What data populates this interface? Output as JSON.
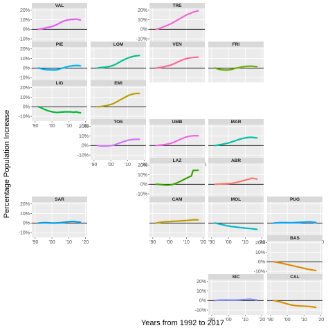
{
  "chart_data": {
    "type": "line",
    "title": "",
    "xlabel": "Years from 1992 to 2017",
    "ylabel": "Percentage Population Increase",
    "xlim": [
      1988,
      2021
    ],
    "ylim": [
      -15,
      22
    ],
    "x_ticks": [
      1990,
      2000,
      2010,
      2020
    ],
    "x_tick_labels": [
      "'90",
      "'00",
      "'10",
      "'20"
    ],
    "y_ticks": [
      -10,
      0,
      10,
      20
    ],
    "y_tick_labels": [
      "-10%",
      "0%",
      "10%",
      "20%"
    ],
    "reference_line_y": 0,
    "grid": true,
    "legend": "none",
    "panel_background": "#ebebeb",
    "strip_background": "#d9d9d9",
    "x": [
      1992,
      1993,
      1994,
      1995,
      1996,
      1997,
      1998,
      1999,
      2000,
      2001,
      2002,
      2003,
      2004,
      2005,
      2006,
      2007,
      2008,
      2009,
      2010,
      2011,
      2012,
      2013,
      2014,
      2015,
      2016,
      2017
    ],
    "series": [
      {
        "name": "VAL",
        "color": "#e55af0",
        "values": [
          0,
          0.3,
          0.6,
          1.0,
          1.4,
          1.8,
          2.1,
          2.5,
          3.0,
          3.5,
          4.2,
          5.0,
          6.0,
          7.0,
          7.8,
          8.6,
          9.2,
          9.6,
          10.0,
          10.2,
          10.4,
          10.3,
          10.8,
          10.5,
          10.0,
          9.8
        ]
      },
      {
        "name": "TRE",
        "color": "#ee67d1",
        "values": [
          0,
          0.4,
          1.0,
          1.6,
          2.3,
          3.0,
          3.7,
          4.4,
          5.2,
          6.0,
          7.0,
          8.0,
          9.0,
          10.0,
          11.0,
          12.0,
          13.0,
          14.0,
          15.0,
          15.8,
          16.5,
          17.2,
          18.0,
          18.5,
          19.0,
          19.3
        ]
      },
      {
        "name": "PIE",
        "color": "#00b3f5",
        "values": [
          0,
          -0.5,
          -0.9,
          -1.2,
          -1.5,
          -1.7,
          -1.8,
          -1.9,
          -2.0,
          -2.0,
          -2.0,
          -1.8,
          -1.3,
          -0.8,
          -0.3,
          0.2,
          0.8,
          1.3,
          1.8,
          2.0,
          2.3,
          2.5,
          2.6,
          2.7,
          2.5,
          2.2
        ]
      },
      {
        "name": "LOM",
        "color": "#00bf8a",
        "values": [
          0,
          0.2,
          0.4,
          0.6,
          0.8,
          1.0,
          1.3,
          1.6,
          2.0,
          2.5,
          3.2,
          4.0,
          5.0,
          6.0,
          7.0,
          8.0,
          8.8,
          9.6,
          10.3,
          11.0,
          11.5,
          12.0,
          12.5,
          12.8,
          13.0,
          13.1
        ]
      },
      {
        "name": "VEN",
        "color": "#f8699c",
        "values": [
          0,
          0.3,
          0.5,
          0.8,
          1.1,
          1.5,
          1.9,
          2.3,
          2.8,
          3.3,
          4.0,
          4.8,
          5.6,
          6.4,
          7.2,
          8.0,
          8.8,
          9.4,
          10.0,
          10.3,
          10.6,
          10.8,
          11.0,
          11.2,
          11.3,
          11.3
        ]
      },
      {
        "name": "FRI",
        "color": "#6bb100",
        "values": [
          0,
          -0.6,
          -1.1,
          -1.5,
          -1.8,
          -2.0,
          -2.1,
          -2.1,
          -2.0,
          -1.8,
          -1.4,
          -0.9,
          -0.4,
          0.0,
          0.4,
          0.8,
          1.2,
          1.5,
          1.7,
          1.8,
          1.9,
          2.0,
          1.9,
          1.8,
          1.6,
          1.5
        ]
      },
      {
        "name": "LIG",
        "color": "#00b833",
        "values": [
          0,
          -0.7,
          -1.5,
          -2.3,
          -3.0,
          -3.7,
          -4.3,
          -4.8,
          -5.2,
          -5.5,
          -5.8,
          -5.9,
          -5.8,
          -5.6,
          -5.5,
          -5.4,
          -5.3,
          -5.3,
          -5.3,
          -5.3,
          -5.5,
          -5.8,
          -5.3,
          -5.6,
          -6.0,
          -6.3
        ]
      },
      {
        "name": "EMI",
        "color": "#b8a000",
        "values": [
          0,
          0.1,
          0.3,
          0.5,
          0.8,
          1.1,
          1.5,
          2.0,
          2.5,
          3.0,
          3.8,
          4.6,
          5.6,
          6.6,
          7.6,
          8.6,
          9.6,
          10.5,
          11.4,
          12.2,
          12.8,
          13.3,
          13.7,
          13.9,
          14.0,
          14.0
        ]
      },
      {
        "name": "TOS",
        "color": "#d174fb",
        "values": [
          0,
          -0.2,
          -0.4,
          -0.5,
          -0.5,
          -0.5,
          -0.4,
          -0.3,
          -0.1,
          0.2,
          0.6,
          1.2,
          1.8,
          2.5,
          3.1,
          3.7,
          4.3,
          4.9,
          5.4,
          5.8,
          6.1,
          6.3,
          6.5,
          6.6,
          6.6,
          6.5
        ]
      },
      {
        "name": "UMB",
        "color": "#f265e6",
        "values": [
          0,
          0.2,
          0.4,
          0.6,
          0.8,
          1.0,
          1.3,
          1.6,
          2.0,
          2.5,
          3.1,
          3.8,
          4.6,
          5.4,
          6.2,
          7.0,
          7.7,
          8.4,
          9.0,
          9.4,
          9.8,
          10.0,
          10.2,
          10.3,
          10.3,
          10.2
        ]
      },
      {
        "name": "MAR",
        "color": "#00bfa5",
        "values": [
          0,
          0.3,
          0.6,
          0.9,
          1.2,
          1.5,
          1.9,
          2.3,
          2.7,
          3.2,
          3.8,
          4.4,
          5.0,
          5.6,
          6.2,
          6.8,
          7.2,
          7.6,
          8.0,
          8.3,
          8.5,
          8.7,
          8.6,
          8.4,
          8.2,
          8.0
        ]
      },
      {
        "name": "LAZ",
        "color": "#38a300",
        "values": [
          0,
          0.0,
          -0.2,
          -0.4,
          -0.6,
          -0.7,
          -0.8,
          -0.8,
          -0.7,
          -0.5,
          -0.1,
          0.5,
          1.2,
          2.0,
          2.8,
          3.6,
          4.5,
          5.4,
          6.3,
          7.2,
          8.0,
          8.7,
          14.5,
          14.6,
          14.6,
          14.7
        ]
      },
      {
        "name": "ABR",
        "color": "#f8766d",
        "values": [
          0,
          0.1,
          0.2,
          0.3,
          0.4,
          0.5,
          0.6,
          0.7,
          0.8,
          0.9,
          1.0,
          1.3,
          1.7,
          2.1,
          2.5,
          3.0,
          3.4,
          3.9,
          4.4,
          4.9,
          5.3,
          5.8,
          6.5,
          6.2,
          5.8,
          5.5
        ]
      },
      {
        "name": "SAR",
        "color": "#0099e5",
        "values": [
          0,
          0.1,
          0.2,
          0.3,
          0.3,
          0.3,
          0.2,
          0.1,
          0.0,
          0.0,
          0.0,
          0.1,
          0.2,
          0.3,
          0.5,
          0.7,
          0.9,
          1.1,
          1.3,
          1.5,
          1.6,
          1.7,
          1.4,
          1.2,
          1.0,
          0.8
        ]
      },
      {
        "name": "CAM",
        "color": "#c09b00",
        "values": [
          0,
          0.3,
          0.6,
          0.9,
          1.1,
          1.3,
          1.4,
          1.5,
          1.6,
          1.7,
          1.8,
          1.9,
          2.0,
          2.1,
          2.2,
          2.3,
          2.4,
          2.5,
          2.6,
          2.8,
          3.0,
          3.2,
          3.4,
          3.5,
          3.4,
          3.3
        ]
      },
      {
        "name": "MOL",
        "color": "#00bcc4",
        "values": [
          0,
          -0.4,
          -0.8,
          -1.2,
          -1.6,
          -2.0,
          -2.4,
          -2.8,
          -3.1,
          -3.4,
          -3.7,
          -3.9,
          -4.1,
          -4.3,
          -4.5,
          -4.7,
          -4.9,
          -5.1,
          -5.3,
          -5.5,
          -5.6,
          -5.8,
          -6.0,
          -6.2,
          -6.4,
          -6.6
        ]
      },
      {
        "name": "PUG",
        "color": "#00a6ff",
        "values": [
          0,
          0.1,
          0.2,
          0.3,
          0.4,
          0.4,
          0.4,
          0.4,
          0.4,
          0.3,
          0.3,
          0.3,
          0.4,
          0.5,
          0.6,
          0.7,
          0.8,
          0.9,
          1.0,
          1.1,
          1.2,
          1.3,
          1.2,
          1.0,
          0.8,
          0.6
        ]
      },
      {
        "name": "BAS",
        "color": "#e08b00",
        "values": [
          0,
          -0.3,
          -0.6,
          -0.9,
          -1.2,
          -1.6,
          -2.0,
          -2.4,
          -2.8,
          -3.2,
          -3.6,
          -4.0,
          -4.4,
          -4.8,
          -5.2,
          -5.6,
          -6.0,
          -6.4,
          -6.8,
          -7.2,
          -7.6,
          -8.0,
          -8.3,
          -8.6,
          -8.9,
          -9.2
        ]
      },
      {
        "name": "SIC",
        "color": "#8494ff",
        "values": [
          0,
          0.2,
          0.4,
          0.5,
          0.6,
          0.6,
          0.6,
          0.6,
          0.6,
          0.5,
          0.5,
          0.5,
          0.5,
          0.6,
          0.7,
          0.8,
          0.9,
          1.0,
          1.1,
          1.2,
          1.3,
          1.4,
          1.2,
          1.0,
          0.8,
          0.6
        ]
      },
      {
        "name": "CAL",
        "color": "#d89000",
        "values": [
          0,
          -0.3,
          -0.7,
          -1.1,
          -1.5,
          -2.0,
          -2.5,
          -3.0,
          -3.5,
          -4.0,
          -4.4,
          -4.8,
          -5.1,
          -5.3,
          -5.5,
          -5.6,
          -5.7,
          -5.8,
          -5.9,
          -6.0,
          -6.1,
          -6.2,
          -6.4,
          -6.6,
          -6.9,
          -7.2
        ]
      }
    ]
  }
}
